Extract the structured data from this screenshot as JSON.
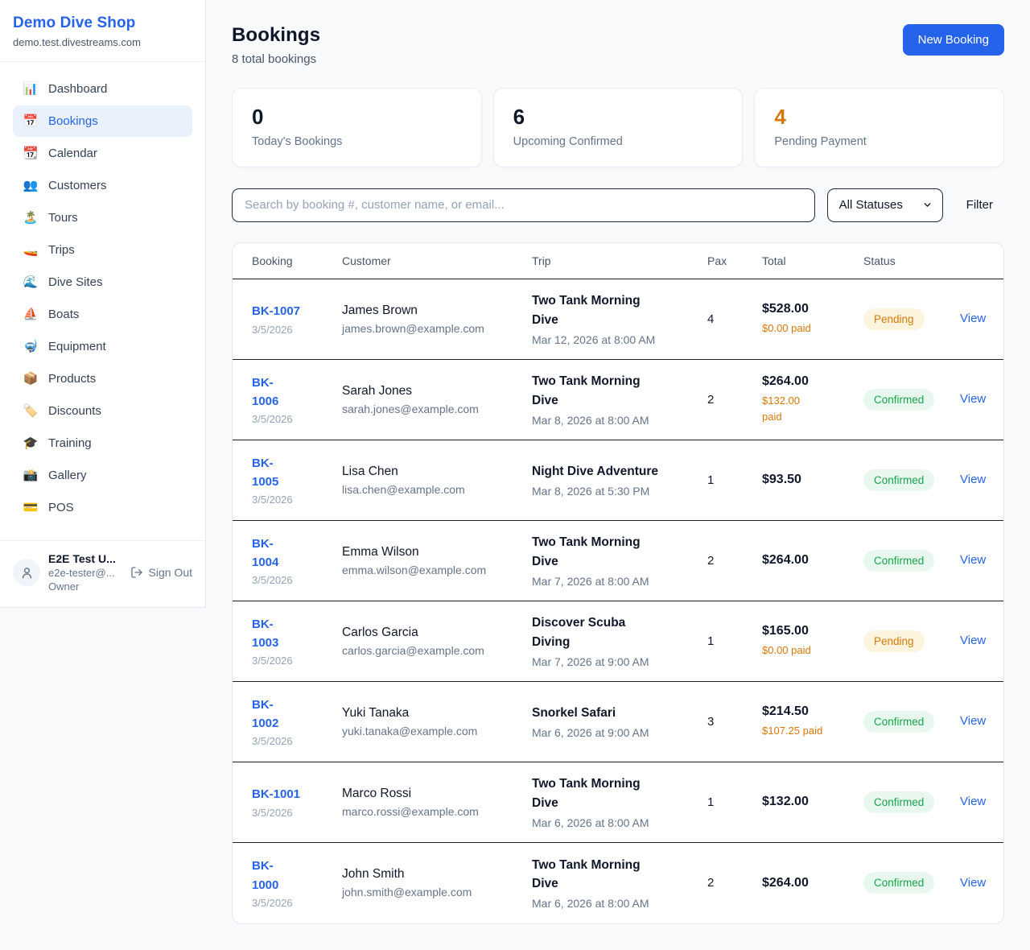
{
  "colors": {
    "accent": "#2563eb",
    "page_bg": "#f8fafc",
    "pending_text": "#d97706",
    "pending_bg": "#fcf4dd",
    "confirmed_text": "#16a34a",
    "confirmed_bg": "#e9f8ef",
    "paid_amount": "#d97706",
    "row_divider": "#1a2230"
  },
  "sidebar": {
    "shop_name": "Demo Dive Shop",
    "domain": "demo.test.divestreams.com",
    "items": [
      {
        "icon": "📊",
        "label": "Dashboard",
        "active": false
      },
      {
        "icon": "📅",
        "label": "Bookings",
        "active": true
      },
      {
        "icon": "📆",
        "label": "Calendar",
        "active": false
      },
      {
        "icon": "👥",
        "label": "Customers",
        "active": false
      },
      {
        "icon": "🏝️",
        "label": "Tours",
        "active": false
      },
      {
        "icon": "🚤",
        "label": "Trips",
        "active": false
      },
      {
        "icon": "🌊",
        "label": "Dive Sites",
        "active": false
      },
      {
        "icon": "⛵",
        "label": "Boats",
        "active": false
      },
      {
        "icon": "🤿",
        "label": "Equipment",
        "active": false
      },
      {
        "icon": "📦",
        "label": "Products",
        "active": false
      },
      {
        "icon": "🏷️",
        "label": "Discounts",
        "active": false
      },
      {
        "icon": "🎓",
        "label": "Training",
        "active": false
      },
      {
        "icon": "📸",
        "label": "Gallery",
        "active": false
      },
      {
        "icon": "💳",
        "label": "POS",
        "active": false
      }
    ],
    "user": {
      "name": "E2E Test U...",
      "email": "e2e-tester@...",
      "role": "Owner"
    },
    "sign_out_label": "Sign Out"
  },
  "header": {
    "title": "Bookings",
    "subtitle": "8 total bookings",
    "new_booking_label": "New Booking"
  },
  "stats": [
    {
      "value": "0",
      "label": "Today's Bookings",
      "highlight": false
    },
    {
      "value": "6",
      "label": "Upcoming Confirmed",
      "highlight": false
    },
    {
      "value": "4",
      "label": "Pending Payment",
      "highlight": true
    }
  ],
  "filters": {
    "search_placeholder": "Search by booking #, customer name, or email...",
    "status_value": "All Statuses",
    "filter_label": "Filter"
  },
  "table": {
    "columns": [
      "Booking",
      "Customer",
      "Trip",
      "Pax",
      "Total",
      "Status",
      ""
    ],
    "rows": [
      {
        "id": "BK-1007",
        "id_display": "BK-1007",
        "date": "3/5/2026",
        "customer": "James Brown",
        "email": "james.brown@example.com",
        "trip": "Two Tank Morning\nDive",
        "trip_datetime": "Mar 12, 2026 at 8:00 AM",
        "pax": "4",
        "total": "$528.00",
        "paid": "$0.00 paid",
        "status": "Pending",
        "view_label": "View"
      },
      {
        "id": "BK-1006",
        "id_display": "BK-\n1006",
        "date": "3/5/2026",
        "customer": "Sarah Jones",
        "email": "sarah.jones@example.com",
        "trip": "Two Tank Morning\nDive",
        "trip_datetime": "Mar 8, 2026 at 8:00 AM",
        "pax": "2",
        "total": "$264.00",
        "paid": "$132.00\npaid",
        "status": "Confirmed",
        "view_label": "View"
      },
      {
        "id": "BK-1005",
        "id_display": "BK-\n1005",
        "date": "3/5/2026",
        "customer": "Lisa Chen",
        "email": "lisa.chen@example.com",
        "trip": "Night Dive Adventure",
        "trip_datetime": "Mar 8, 2026 at 5:30 PM",
        "pax": "1",
        "total": "$93.50",
        "paid": null,
        "status": "Confirmed",
        "view_label": "View"
      },
      {
        "id": "BK-1004",
        "id_display": "BK-\n1004",
        "date": "3/5/2026",
        "customer": "Emma Wilson",
        "email": "emma.wilson@example.com",
        "trip": "Two Tank Morning\nDive",
        "trip_datetime": "Mar 7, 2026 at 8:00 AM",
        "pax": "2",
        "total": "$264.00",
        "paid": null,
        "status": "Confirmed",
        "view_label": "View"
      },
      {
        "id": "BK-1003",
        "id_display": "BK-\n1003",
        "date": "3/5/2026",
        "customer": "Carlos Garcia",
        "email": "carlos.garcia@example.com",
        "trip": "Discover Scuba\nDiving",
        "trip_datetime": "Mar 7, 2026 at 9:00 AM",
        "pax": "1",
        "total": "$165.00",
        "paid": "$0.00 paid",
        "status": "Pending",
        "view_label": "View"
      },
      {
        "id": "BK-1002",
        "id_display": "BK-\n1002",
        "date": "3/5/2026",
        "customer": "Yuki Tanaka",
        "email": "yuki.tanaka@example.com",
        "trip": "Snorkel Safari",
        "trip_datetime": "Mar 6, 2026 at 9:00 AM",
        "pax": "3",
        "total": "$214.50",
        "paid": "$107.25 paid",
        "status": "Confirmed",
        "view_label": "View"
      },
      {
        "id": "BK-1001",
        "id_display": "BK-1001",
        "date": "3/5/2026",
        "customer": "Marco Rossi",
        "email": "marco.rossi@example.com",
        "trip": "Two Tank Morning\nDive",
        "trip_datetime": "Mar 6, 2026 at 8:00 AM",
        "pax": "1",
        "total": "$132.00",
        "paid": null,
        "status": "Confirmed",
        "view_label": "View"
      },
      {
        "id": "BK-1000",
        "id_display": "BK-\n1000",
        "date": "3/5/2026",
        "customer": "John Smith",
        "email": "john.smith@example.com",
        "trip": "Two Tank Morning\nDive",
        "trip_datetime": "Mar 6, 2026 at 8:00 AM",
        "pax": "2",
        "total": "$264.00",
        "paid": null,
        "status": "Confirmed",
        "view_label": "View"
      }
    ]
  }
}
